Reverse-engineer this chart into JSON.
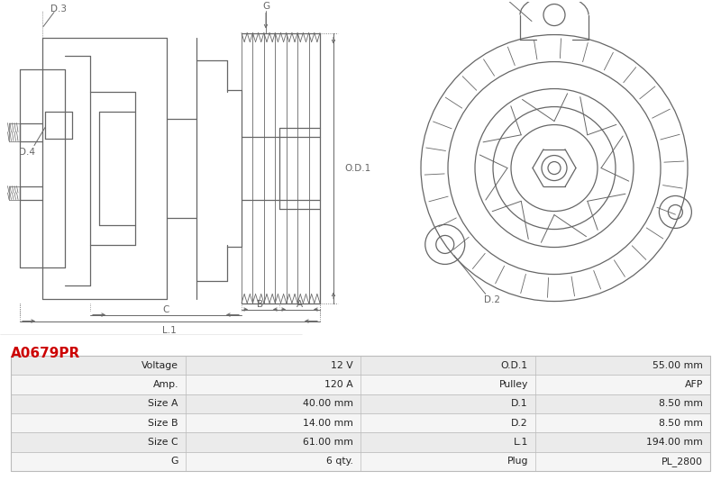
{
  "title": "A0679PR",
  "title_color": "#cc0000",
  "bg_color": "#ffffff",
  "table_row_bg_odd": "#ebebeb",
  "table_row_bg_even": "#f5f5f5",
  "table_border_color": "#bbbbbb",
  "drawing_color": "#666666",
  "table_data": [
    [
      "Voltage",
      "12 V",
      "O.D.1",
      "55.00 mm"
    ],
    [
      "Amp.",
      "120 A",
      "Pulley",
      "AFP"
    ],
    [
      "Size A",
      "40.00 mm",
      "D.1",
      "8.50 mm"
    ],
    [
      "Size B",
      "14.00 mm",
      "D.2",
      "8.50 mm"
    ],
    [
      "Size C",
      "61.00 mm",
      "L.1",
      "194.00 mm"
    ],
    [
      "G",
      "6 qty.",
      "Plug",
      "PL_2800"
    ]
  ],
  "fig_width": 8.0,
  "fig_height": 5.33
}
